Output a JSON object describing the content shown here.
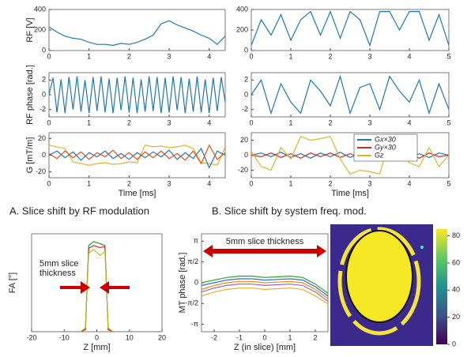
{
  "chart_data": [
    {
      "type": "line",
      "ylabel": "RF [V]",
      "x": [
        0,
        0.2,
        0.4,
        0.6,
        0.8,
        1,
        1.2,
        1.4,
        1.6,
        1.8,
        2,
        2.2,
        2.4,
        2.6,
        2.8,
        3,
        3.2,
        3.4,
        3.6,
        3.8,
        4,
        4.2,
        4.4
      ],
      "xlim": [
        0,
        4.4
      ],
      "xticks": [
        0,
        1,
        2,
        3,
        4
      ],
      "ylim": [
        0,
        400
      ],
      "yticks": [
        0,
        200,
        400
      ],
      "series": [
        {
          "color": "#1f77b4",
          "values": [
            230,
            180,
            140,
            120,
            110,
            80,
            60,
            60,
            50,
            70,
            60,
            80,
            110,
            150,
            260,
            290,
            250,
            220,
            190,
            150,
            120,
            60,
            140
          ]
        }
      ]
    },
    {
      "type": "line",
      "ylabel": "RF phase [rad.]",
      "x": [
        0,
        0.1,
        0.2,
        0.3,
        0.4,
        0.5,
        0.6,
        0.7,
        0.8,
        0.9,
        1,
        1.1,
        1.2,
        1.3,
        1.4,
        1.5,
        1.6,
        1.7,
        1.8,
        1.9,
        2,
        2.1,
        2.2,
        2.3,
        2.4,
        2.5,
        2.6,
        2.7,
        2.8,
        2.9,
        3,
        3.1,
        3.2,
        3.3,
        3.4,
        3.5,
        3.6,
        3.7,
        3.8,
        3.9,
        4,
        4.1,
        4.2,
        4.3,
        4.4
      ],
      "xlim": [
        0,
        4.4
      ],
      "xticks": [
        0,
        1,
        2,
        3,
        4
      ],
      "ylim": [
        -3,
        3
      ],
      "yticks": [
        -2,
        0,
        2
      ],
      "series": [
        {
          "color": "#1f77b4",
          "values": [
            0,
            2.3,
            -2.4,
            2.1,
            -2.5,
            2.4,
            -2,
            2.5,
            -2.3,
            2,
            -2.5,
            2.4,
            -2.2,
            2.5,
            -2.4,
            2.2,
            -2.5,
            2.3,
            -2.1,
            2.5,
            -2.4,
            2.3,
            -2.5,
            2.1,
            -2.3,
            2.5,
            -2.2,
            2.4,
            -2.5,
            2.3,
            -2.4,
            2.5,
            -2.1,
            2.4,
            -2.5,
            2.2,
            -2.3,
            2.5,
            -2.4,
            2.1,
            -2.5,
            2.3,
            -2.2,
            2.4,
            -1
          ]
        }
      ]
    },
    {
      "type": "line",
      "ylabel": "G [mT/m]",
      "xlabel": "Time [ms]",
      "caption": "A. Slice shift by RF modulation",
      "x": [
        0,
        0.2,
        0.4,
        0.6,
        0.8,
        1,
        1.2,
        1.4,
        1.6,
        1.8,
        2,
        2.2,
        2.4,
        2.6,
        2.8,
        3,
        3.2,
        3.4,
        3.6,
        3.8,
        4,
        4.2,
        4.4
      ],
      "xlim": [
        0,
        4.4
      ],
      "xticks": [
        0,
        1,
        2,
        3,
        4
      ],
      "ylim": [
        -27,
        27
      ],
      "yticks": [
        -20,
        0,
        20
      ],
      "series": [
        {
          "color": "#e8b02a",
          "values": [
            12,
            10,
            8,
            -8,
            -10,
            -12,
            -10,
            -9,
            -11,
            -10,
            -8,
            -9,
            12,
            10,
            11,
            9,
            10,
            12,
            8,
            -9,
            -10,
            -12,
            10
          ]
        },
        {
          "color": "#1f77b4",
          "values": [
            0,
            5,
            -3,
            4,
            -6,
            3,
            -2,
            5,
            -4,
            2,
            -5,
            3,
            -3,
            4,
            -2,
            6,
            -5,
            3,
            -4,
            8,
            -15,
            5,
            0
          ]
        },
        {
          "color": "#e2501a",
          "values": [
            2,
            -4,
            5,
            -3,
            4,
            -5,
            3,
            -2,
            6,
            -4,
            3,
            -5,
            4,
            -3,
            5,
            -4,
            2,
            -6,
            5,
            -10,
            12,
            -5,
            3
          ]
        }
      ]
    },
    {
      "type": "line",
      "x": [
        0,
        0.25,
        0.5,
        0.75,
        1,
        1.25,
        1.5,
        1.75,
        2,
        2.25,
        2.5,
        2.75,
        3,
        3.25,
        3.5,
        3.75,
        4,
        4.25,
        4.5,
        4.75,
        5
      ],
      "xlim": [
        0,
        5
      ],
      "xticks": [
        0,
        1,
        2,
        3,
        4,
        5
      ],
      "ylim": [
        0,
        400
      ],
      "yticks": [
        0,
        200,
        400
      ],
      "series": [
        {
          "color": "#1f77b4",
          "values": [
            50,
            300,
            150,
            350,
            100,
            300,
            380,
            150,
            380,
            120,
            380,
            300,
            50,
            380,
            380,
            200,
            380,
            380,
            100,
            350,
            50
          ]
        }
      ]
    },
    {
      "type": "line",
      "x": [
        0,
        0.25,
        0.5,
        0.75,
        1,
        1.25,
        1.5,
        1.75,
        2,
        2.25,
        2.5,
        2.75,
        3,
        3.25,
        3.5,
        3.75,
        4,
        4.25,
        4.5,
        4.75,
        5
      ],
      "xlim": [
        0,
        5
      ],
      "xticks": [
        0,
        1,
        2,
        3,
        4,
        5
      ],
      "ylim": [
        -3,
        3
      ],
      "yticks": [
        -2,
        0,
        2
      ],
      "series": [
        {
          "color": "#1f77b4",
          "values": [
            0,
            2,
            -2.5,
            1.5,
            -1,
            -2.5,
            2,
            0.5,
            -1.5,
            2.5,
            -2.5,
            1,
            1.5,
            -2,
            2.5,
            0.5,
            -1,
            2,
            -2.5,
            1.5,
            -2
          ]
        }
      ]
    },
    {
      "type": "line",
      "xlabel": "Time [ms]",
      "caption": "B. Slice shift by system freq. mod.",
      "x": [
        0,
        0.25,
        0.5,
        0.75,
        1,
        1.25,
        1.5,
        1.75,
        2,
        2.25,
        2.5,
        2.75,
        3,
        3.25,
        3.5,
        3.75,
        4,
        4.25,
        4.5,
        4.75,
        5
      ],
      "xlim": [
        0,
        5
      ],
      "xticks": [
        0,
        1,
        2,
        3,
        4,
        5
      ],
      "ylim": [
        -30,
        30
      ],
      "yticks": [
        -20,
        0,
        20
      ],
      "series": [
        {
          "name": "Gx×30",
          "color": "#1f77b4",
          "values": [
            0,
            3,
            -2,
            4,
            -3,
            2,
            -4,
            3,
            -2,
            4,
            -3,
            2,
            -3,
            4,
            -2,
            3,
            -4,
            2,
            -3,
            3,
            0
          ]
        },
        {
          "name": "Gy×30",
          "color": "#d62728",
          "values": [
            0,
            -2,
            3,
            -3,
            2,
            -4,
            3,
            -2,
            3,
            -3,
            2,
            -3,
            4,
            -2,
            3,
            -3,
            2,
            -4,
            3,
            -2,
            0
          ]
        },
        {
          "name": "Gz",
          "color": "#e8b02a",
          "values": [
            5,
            -15,
            -20,
            10,
            -5,
            25,
            20,
            22,
            25,
            -5,
            -25,
            -20,
            -22,
            -25,
            20,
            18,
            -10,
            -15,
            10,
            -15,
            0
          ]
        }
      ]
    },
    {
      "type": "line",
      "ylabel": "FA [°]",
      "xlabel": "Z [mm]",
      "annotation": [
        "5mm slice",
        "thickness"
      ],
      "x": [
        -20,
        -10,
        -5,
        -3.5,
        -2.5,
        -1,
        1,
        2.5,
        3.5,
        5,
        10,
        20
      ],
      "xlim": [
        -20,
        20
      ],
      "xticks": [
        -20,
        -10,
        0,
        10,
        20
      ],
      "ylim": [
        0,
        100
      ],
      "yticks": [],
      "series": [
        {
          "color": "#2ca02c",
          "values": [
            0,
            0,
            0,
            3,
            88,
            92,
            90,
            88,
            3,
            0,
            0,
            0
          ]
        },
        {
          "color": "#d62728",
          "values": [
            0,
            0,
            0,
            2,
            85,
            88,
            86,
            87,
            2,
            0,
            0,
            0
          ]
        },
        {
          "color": "#bcbd22",
          "values": [
            0,
            0,
            0,
            4,
            80,
            84,
            78,
            82,
            4,
            0,
            0,
            0
          ]
        }
      ]
    },
    {
      "type": "line",
      "ylabel": "MT phase [rad.]",
      "xlabel": "Z (in slice) [mm]",
      "annotation": [
        "5mm slice thickness"
      ],
      "x": [
        -2.5,
        -2,
        -1.5,
        -1,
        -0.5,
        0,
        0.5,
        1,
        1.5,
        2,
        2.5
      ],
      "xlim": [
        -2.5,
        2.5
      ],
      "xticks": [
        -2,
        -1,
        0,
        1,
        2
      ],
      "ylim": [
        -3.7,
        3.7
      ],
      "yticks": [
        {
          "value": -3.1416,
          "label": "-π"
        },
        {
          "value": -1.5708,
          "label": "-π/2"
        },
        0,
        {
          "value": 1.5708,
          "label": "π/2"
        },
        {
          "value": 3.1416,
          "label": "π"
        }
      ],
      "series": [
        {
          "color": "#1f77b4",
          "values": [
            -0.2,
            0,
            0.2,
            0.3,
            0.3,
            0.2,
            0.25,
            0.3,
            0.2,
            -0.3,
            -1
          ]
        },
        {
          "color": "#ff7f0e",
          "values": [
            -0.5,
            -0.2,
            0,
            0.1,
            0.1,
            0,
            0.05,
            0.1,
            0,
            -0.5,
            -1.2
          ]
        },
        {
          "color": "#2ca02c",
          "values": [
            0,
            0.2,
            0.4,
            0.5,
            0.5,
            0.4,
            0.45,
            0.5,
            0.4,
            -0.1,
            -0.8
          ]
        },
        {
          "color": "#9467bd",
          "values": [
            -0.7,
            -0.4,
            -0.2,
            -0.1,
            -0.1,
            -0.2,
            -0.15,
            -0.1,
            -0.2,
            -0.7,
            -1.4
          ]
        },
        {
          "color": "#e8b02a",
          "values": [
            -1,
            -0.7,
            -0.5,
            -0.4,
            -0.4,
            -0.5,
            -0.45,
            -0.4,
            -0.5,
            -1,
            -1.6
          ]
        }
      ]
    },
    {
      "type": "image",
      "clim": [
        0,
        85
      ],
      "cticks": [
        0,
        20,
        40,
        60,
        80
      ]
    }
  ]
}
